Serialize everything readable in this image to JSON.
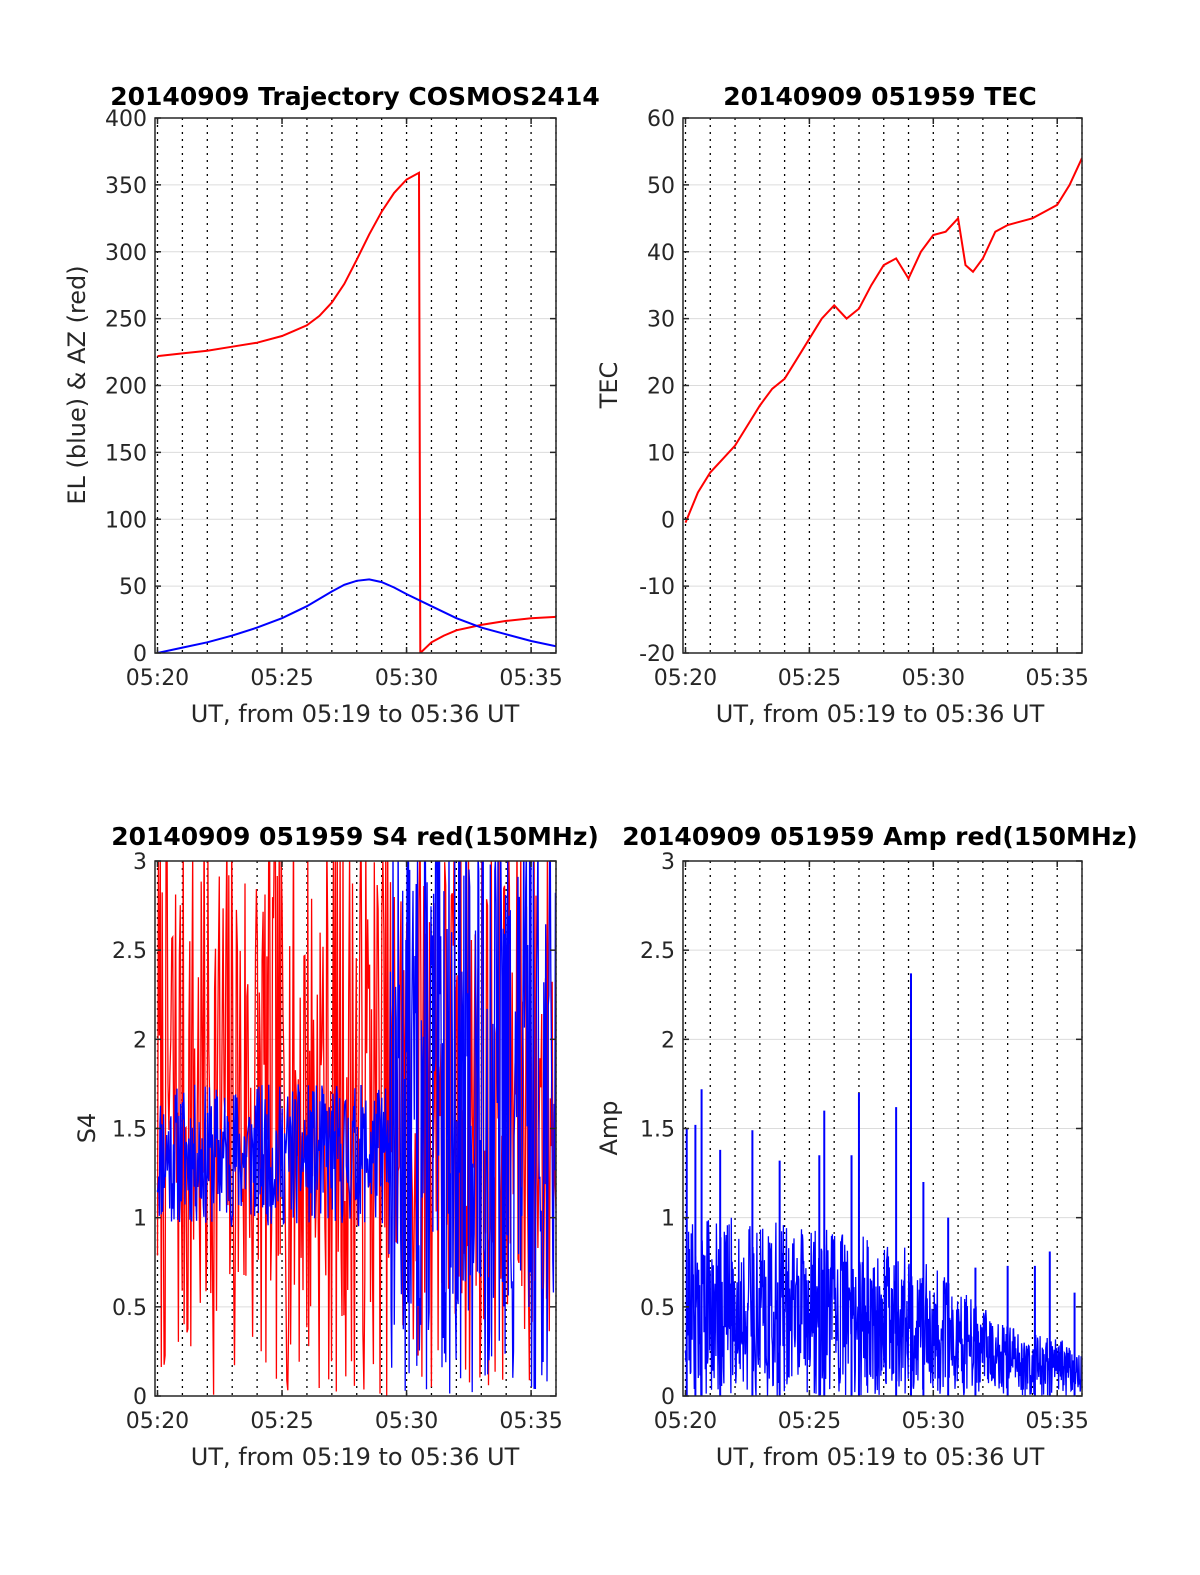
{
  "colors": {
    "red": "#ff0000",
    "blue": "#0000ff",
    "axis": "#262626",
    "grid": "#dcdcdc"
  },
  "chart_data": [
    {
      "id": "trajectory",
      "type": "line",
      "title": "20140909 Trajectory COSMOS2414",
      "xlabel": "UT, from 05:19 to 05:36 UT",
      "ylabel": "EL (blue) & AZ (red)",
      "x_unit": "minutes",
      "xlim": [
        19.9,
        36.0
      ],
      "ylim": [
        0,
        400
      ],
      "xticks": [
        20,
        25,
        30,
        35
      ],
      "xtick_labels": [
        "05:20",
        "05:25",
        "05:30",
        "05:35"
      ],
      "yticks": [
        0,
        50,
        100,
        150,
        200,
        250,
        300,
        350,
        400
      ],
      "ytick_labels": [
        "0",
        "50",
        "100",
        "150",
        "200",
        "250",
        "300",
        "350",
        "400"
      ],
      "grid": true,
      "series": [
        {
          "color": "#ff0000",
          "x": [
            20.0,
            21.0,
            22.0,
            23.0,
            24.0,
            25.0,
            25.5,
            26.0,
            26.5,
            27.0,
            27.5,
            28.0,
            28.5,
            29.0,
            29.5,
            30.0,
            30.5,
            30.55,
            31.0,
            31.5,
            32.0,
            33.0,
            34.0,
            35.0,
            36.0
          ],
          "y": [
            222,
            224,
            226,
            229,
            232,
            237,
            241,
            245,
            252,
            262,
            276,
            294,
            313,
            330,
            344,
            354,
            359,
            0,
            8,
            13,
            17,
            21,
            24,
            26,
            27
          ]
        },
        {
          "color": "#0000ff",
          "x": [
            20.0,
            21.0,
            22.0,
            23.0,
            24.0,
            25.0,
            26.0,
            27.0,
            27.5,
            28.0,
            28.5,
            29.0,
            29.5,
            30.0,
            31.0,
            32.0,
            33.0,
            34.0,
            35.0,
            36.0
          ],
          "y": [
            0,
            4,
            8,
            13,
            19,
            26,
            35,
            46,
            51,
            54,
            55,
            53,
            49,
            44,
            35,
            26,
            19,
            14,
            9,
            5
          ]
        }
      ]
    },
    {
      "id": "tec",
      "type": "line",
      "title": "20140909 051959 TEC",
      "xlabel": "UT, from 05:19 to 05:36 UT",
      "ylabel": "TEC",
      "x_unit": "minutes",
      "xlim": [
        19.9,
        36.0
      ],
      "ylim": [
        -20,
        60
      ],
      "xticks": [
        20,
        25,
        30,
        35
      ],
      "xtick_labels": [
        "05:20",
        "05:25",
        "05:30",
        "05:35"
      ],
      "yticks": [
        -20,
        -10,
        0,
        10,
        20,
        30,
        40,
        50,
        60
      ],
      "ytick_labels": [
        "-20",
        "-10",
        "0",
        "10",
        "20",
        "30",
        "40",
        "50",
        "60"
      ],
      "grid": true,
      "series": [
        {
          "color": "#ff0000",
          "x": [
            20.0,
            20.5,
            21.0,
            21.5,
            22.0,
            22.5,
            23.0,
            23.5,
            24.0,
            24.5,
            25.0,
            25.5,
            26.0,
            26.5,
            27.0,
            27.5,
            28.0,
            28.5,
            29.0,
            29.5,
            30.0,
            30.5,
            31.0,
            31.3,
            31.6,
            32.0,
            32.5,
            33.0,
            33.5,
            34.0,
            34.5,
            35.0,
            35.5,
            36.0
          ],
          "y": [
            -0.5,
            4,
            7,
            9,
            11,
            14,
            17,
            19.5,
            21,
            24,
            27,
            30,
            32,
            30,
            31.5,
            35,
            38,
            39,
            36,
            40,
            42.5,
            43,
            45,
            38,
            37,
            39,
            43,
            44,
            44.5,
            45,
            46,
            47,
            50,
            54
          ]
        }
      ]
    },
    {
      "id": "s4",
      "type": "line",
      "title": "20140909 051959 S4 red(150MHz)",
      "xlabel": "UT, from 05:19 to 05:36 UT",
      "ylabel": "S4",
      "x_unit": "minutes",
      "xlim": [
        19.9,
        36.0
      ],
      "ylim": [
        0,
        3
      ],
      "xticks": [
        20,
        25,
        30,
        35
      ],
      "xtick_labels": [
        "05:20",
        "05:25",
        "05:30",
        "05:35"
      ],
      "yticks": [
        0,
        0.5,
        1,
        1.5,
        2,
        2.5,
        3
      ],
      "ytick_labels": [
        "0",
        "0.5",
        "1",
        "1.5",
        "2",
        "2.5",
        "3"
      ],
      "grid": true,
      "noise": [
        {
          "color": "#ff0000",
          "x_start": 20.0,
          "x_end": 36.0,
          "points": 420,
          "low": 0.0,
          "high": 3.3,
          "seed": 7
        },
        {
          "color": "#0000ff",
          "x_start": 20.0,
          "x_end": 29.3,
          "points": 380,
          "low": 0.95,
          "high": 1.75,
          "seed": 11
        },
        {
          "color": "#0000ff",
          "x_start": 29.3,
          "x_end": 36.0,
          "points": 260,
          "low": 0.0,
          "high": 3.3,
          "seed": 13
        }
      ]
    },
    {
      "id": "amp",
      "type": "line",
      "title": "20140909 051959 Amp red(150MHz)",
      "xlabel": "UT, from 05:19 to 05:36 UT",
      "ylabel": "Amp",
      "x_unit": "minutes",
      "xlim": [
        19.9,
        36.0
      ],
      "ylim": [
        0,
        3
      ],
      "xticks": [
        20,
        25,
        30,
        35
      ],
      "xtick_labels": [
        "05:20",
        "05:25",
        "05:30",
        "05:35"
      ],
      "yticks": [
        0,
        0.5,
        1,
        1.5,
        2,
        2.5,
        3
      ],
      "ytick_labels": [
        "0",
        "0.5",
        "1",
        "1.5",
        "2",
        "2.5",
        "3"
      ],
      "grid": true,
      "envelope": {
        "x": [
          20.0,
          22.0,
          25.0,
          27.0,
          29.0,
          30.0,
          31.0,
          32.0,
          33.0,
          34.0,
          36.0
        ],
        "y": [
          1.05,
          1.0,
          0.95,
          0.9,
          0.85,
          0.75,
          0.6,
          0.5,
          0.4,
          0.35,
          0.3
        ]
      },
      "peaks": [
        {
          "x": 20.05,
          "y": 1.5
        },
        {
          "x": 20.4,
          "y": 1.52
        },
        {
          "x": 20.65,
          "y": 1.72
        },
        {
          "x": 21.4,
          "y": 1.38
        },
        {
          "x": 22.7,
          "y": 1.49
        },
        {
          "x": 23.8,
          "y": 1.32
        },
        {
          "x": 25.4,
          "y": 1.35
        },
        {
          "x": 25.6,
          "y": 1.6
        },
        {
          "x": 26.7,
          "y": 1.35
        },
        {
          "x": 27.0,
          "y": 1.7
        },
        {
          "x": 28.5,
          "y": 1.62
        },
        {
          "x": 29.1,
          "y": 2.37
        },
        {
          "x": 29.6,
          "y": 1.2
        },
        {
          "x": 30.6,
          "y": 1.0
        },
        {
          "x": 31.7,
          "y": 0.72
        },
        {
          "x": 33.0,
          "y": 0.73
        },
        {
          "x": 34.1,
          "y": 0.73
        },
        {
          "x": 34.7,
          "y": 0.81
        },
        {
          "x": 35.7,
          "y": 0.58
        }
      ],
      "noise": [
        {
          "color": "#0000ff",
          "x_start": 20.0,
          "x_end": 36.0,
          "points": 900,
          "low": 0.0,
          "high": 1.0,
          "seed": 21
        }
      ]
    }
  ]
}
